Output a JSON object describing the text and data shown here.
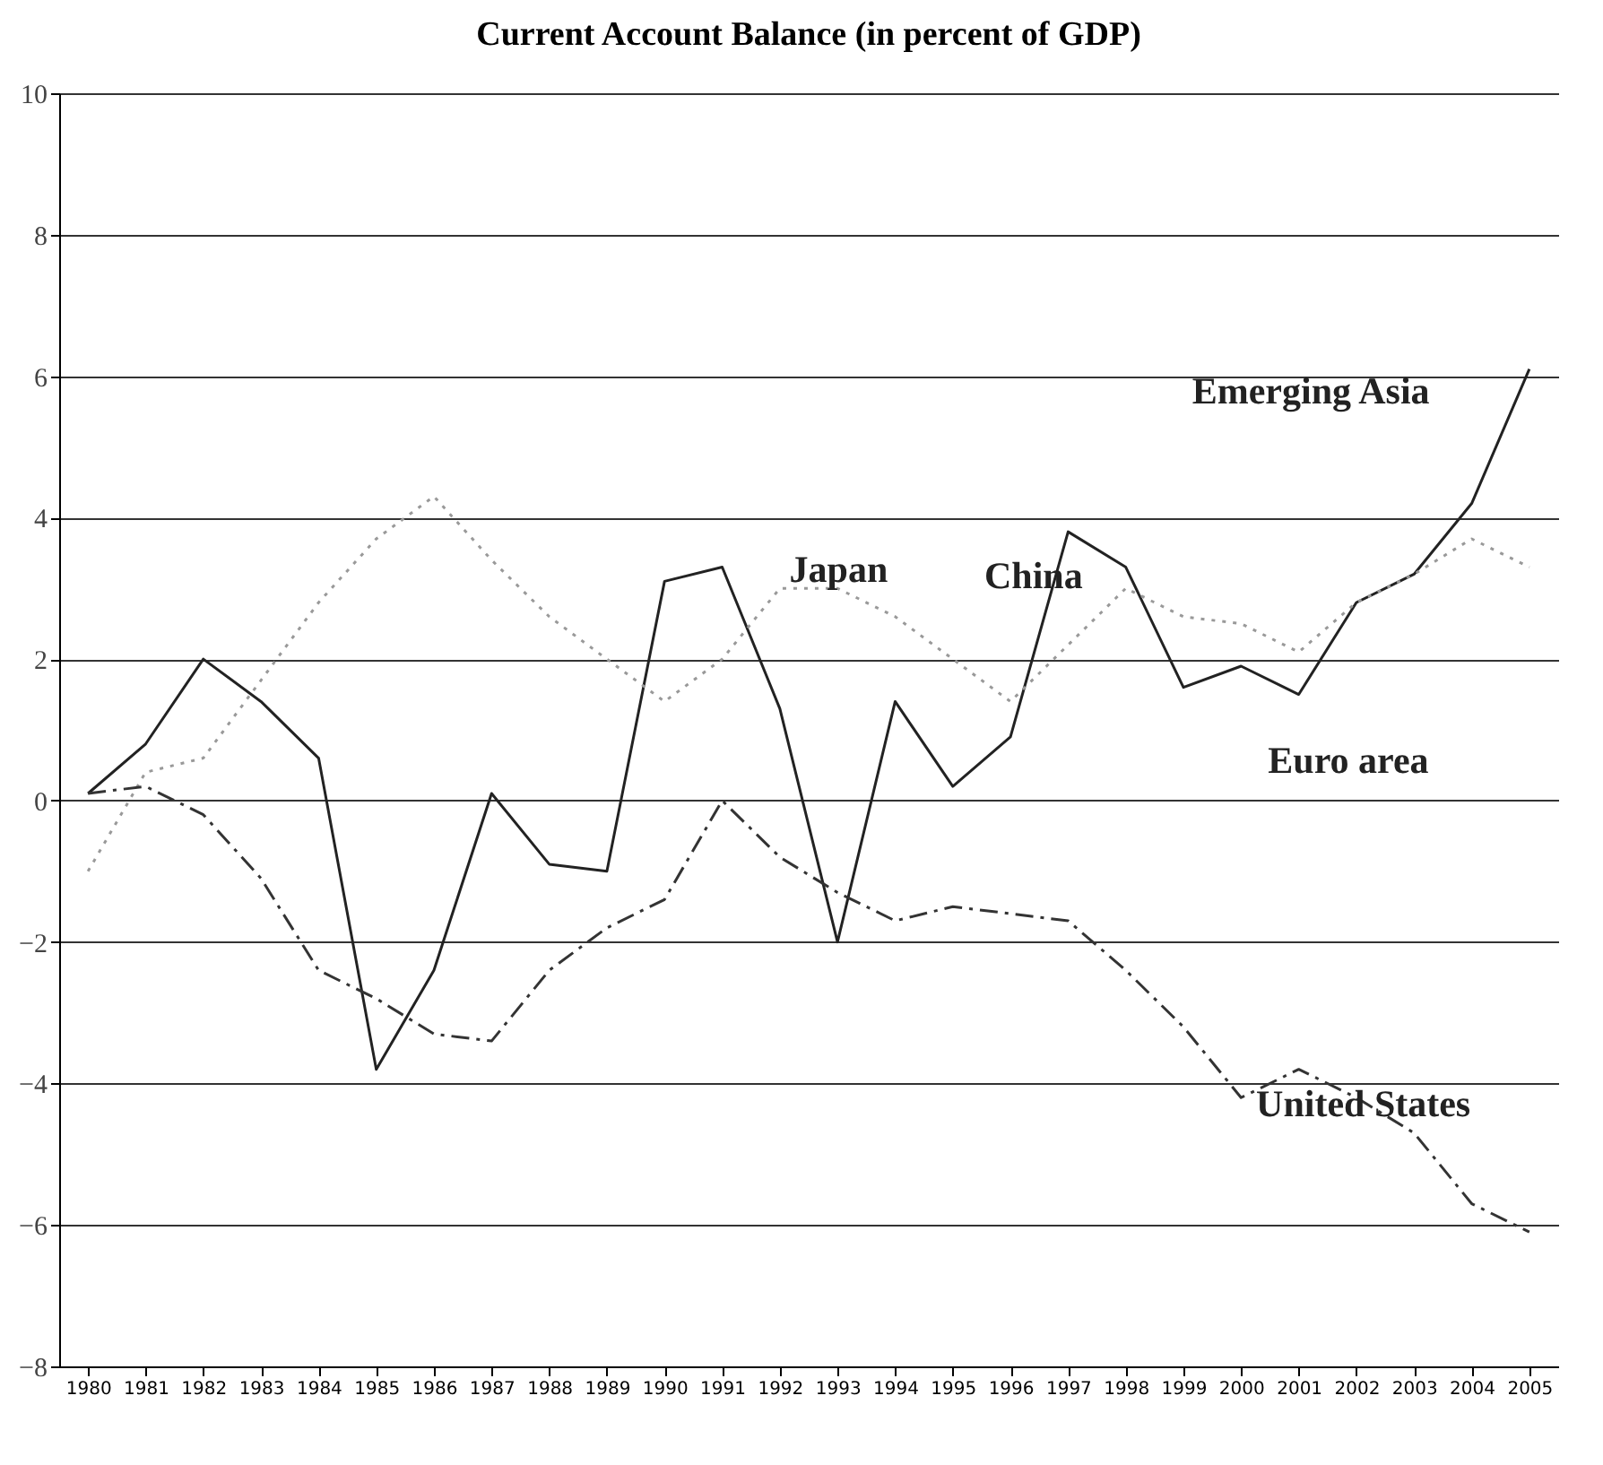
{
  "chart_data": {
    "type": "line",
    "title": "Current Account Balance (in percent of GDP)",
    "categories": [
      "1980",
      "1981",
      "1982",
      "1983",
      "1984",
      "1985",
      "1986",
      "1987",
      "1988",
      "1989",
      "1990",
      "1991",
      "1992",
      "1993",
      "1994",
      "1995",
      "1996",
      "1997",
      "1998",
      "1999",
      "2000",
      "2001",
      "2002",
      "2003",
      "2004",
      "2005"
    ],
    "series": [
      {
        "color": "#222222",
        "line_style": "solid",
        "values": [
          0.1,
          0.8,
          2.0,
          1.4,
          0.6,
          -3.8,
          -2.4,
          0.1,
          -0.9,
          -1.0,
          3.1,
          3.3,
          1.3,
          -2.0,
          1.4,
          0.2,
          0.9,
          3.8,
          3.3,
          1.6,
          1.9,
          1.5,
          2.8,
          3.2,
          4.2,
          6.1
        ]
      },
      {
        "color": "#999999",
        "line_style": "dotted",
        "values": [
          -1.0,
          0.4,
          0.6,
          1.7,
          2.8,
          3.7,
          4.3,
          3.4,
          2.6,
          2.0,
          1.4,
          2.0,
          3.0,
          3.0,
          2.6,
          2.0,
          1.4,
          2.2,
          3.0,
          2.6,
          2.5,
          2.1,
          2.8,
          3.2,
          3.7,
          3.3
        ]
      },
      {
        "color": "#333333",
        "line_style": "dashed",
        "values": [
          0.1,
          0.2,
          -0.2,
          -1.1,
          -2.4,
          -2.8,
          -3.3,
          -3.4,
          -2.4,
          -1.8,
          -1.4,
          0.0,
          -0.8,
          -1.3,
          -1.7,
          -1.5,
          -1.6,
          -1.7,
          -2.4,
          -3.2,
          -4.2,
          -3.8,
          -4.2,
          -4.7,
          -5.7,
          -6.1
        ]
      }
    ],
    "ylim": [
      -8,
      10
    ],
    "yticks": [
      -8,
      -6,
      -4,
      -2,
      0,
      2,
      4,
      6,
      8,
      10
    ],
    "grid": "y",
    "marker": "none",
    "annotations": [
      "Emerging Asia",
      "Japan",
      "China",
      "Euro area",
      "United States"
    ]
  }
}
